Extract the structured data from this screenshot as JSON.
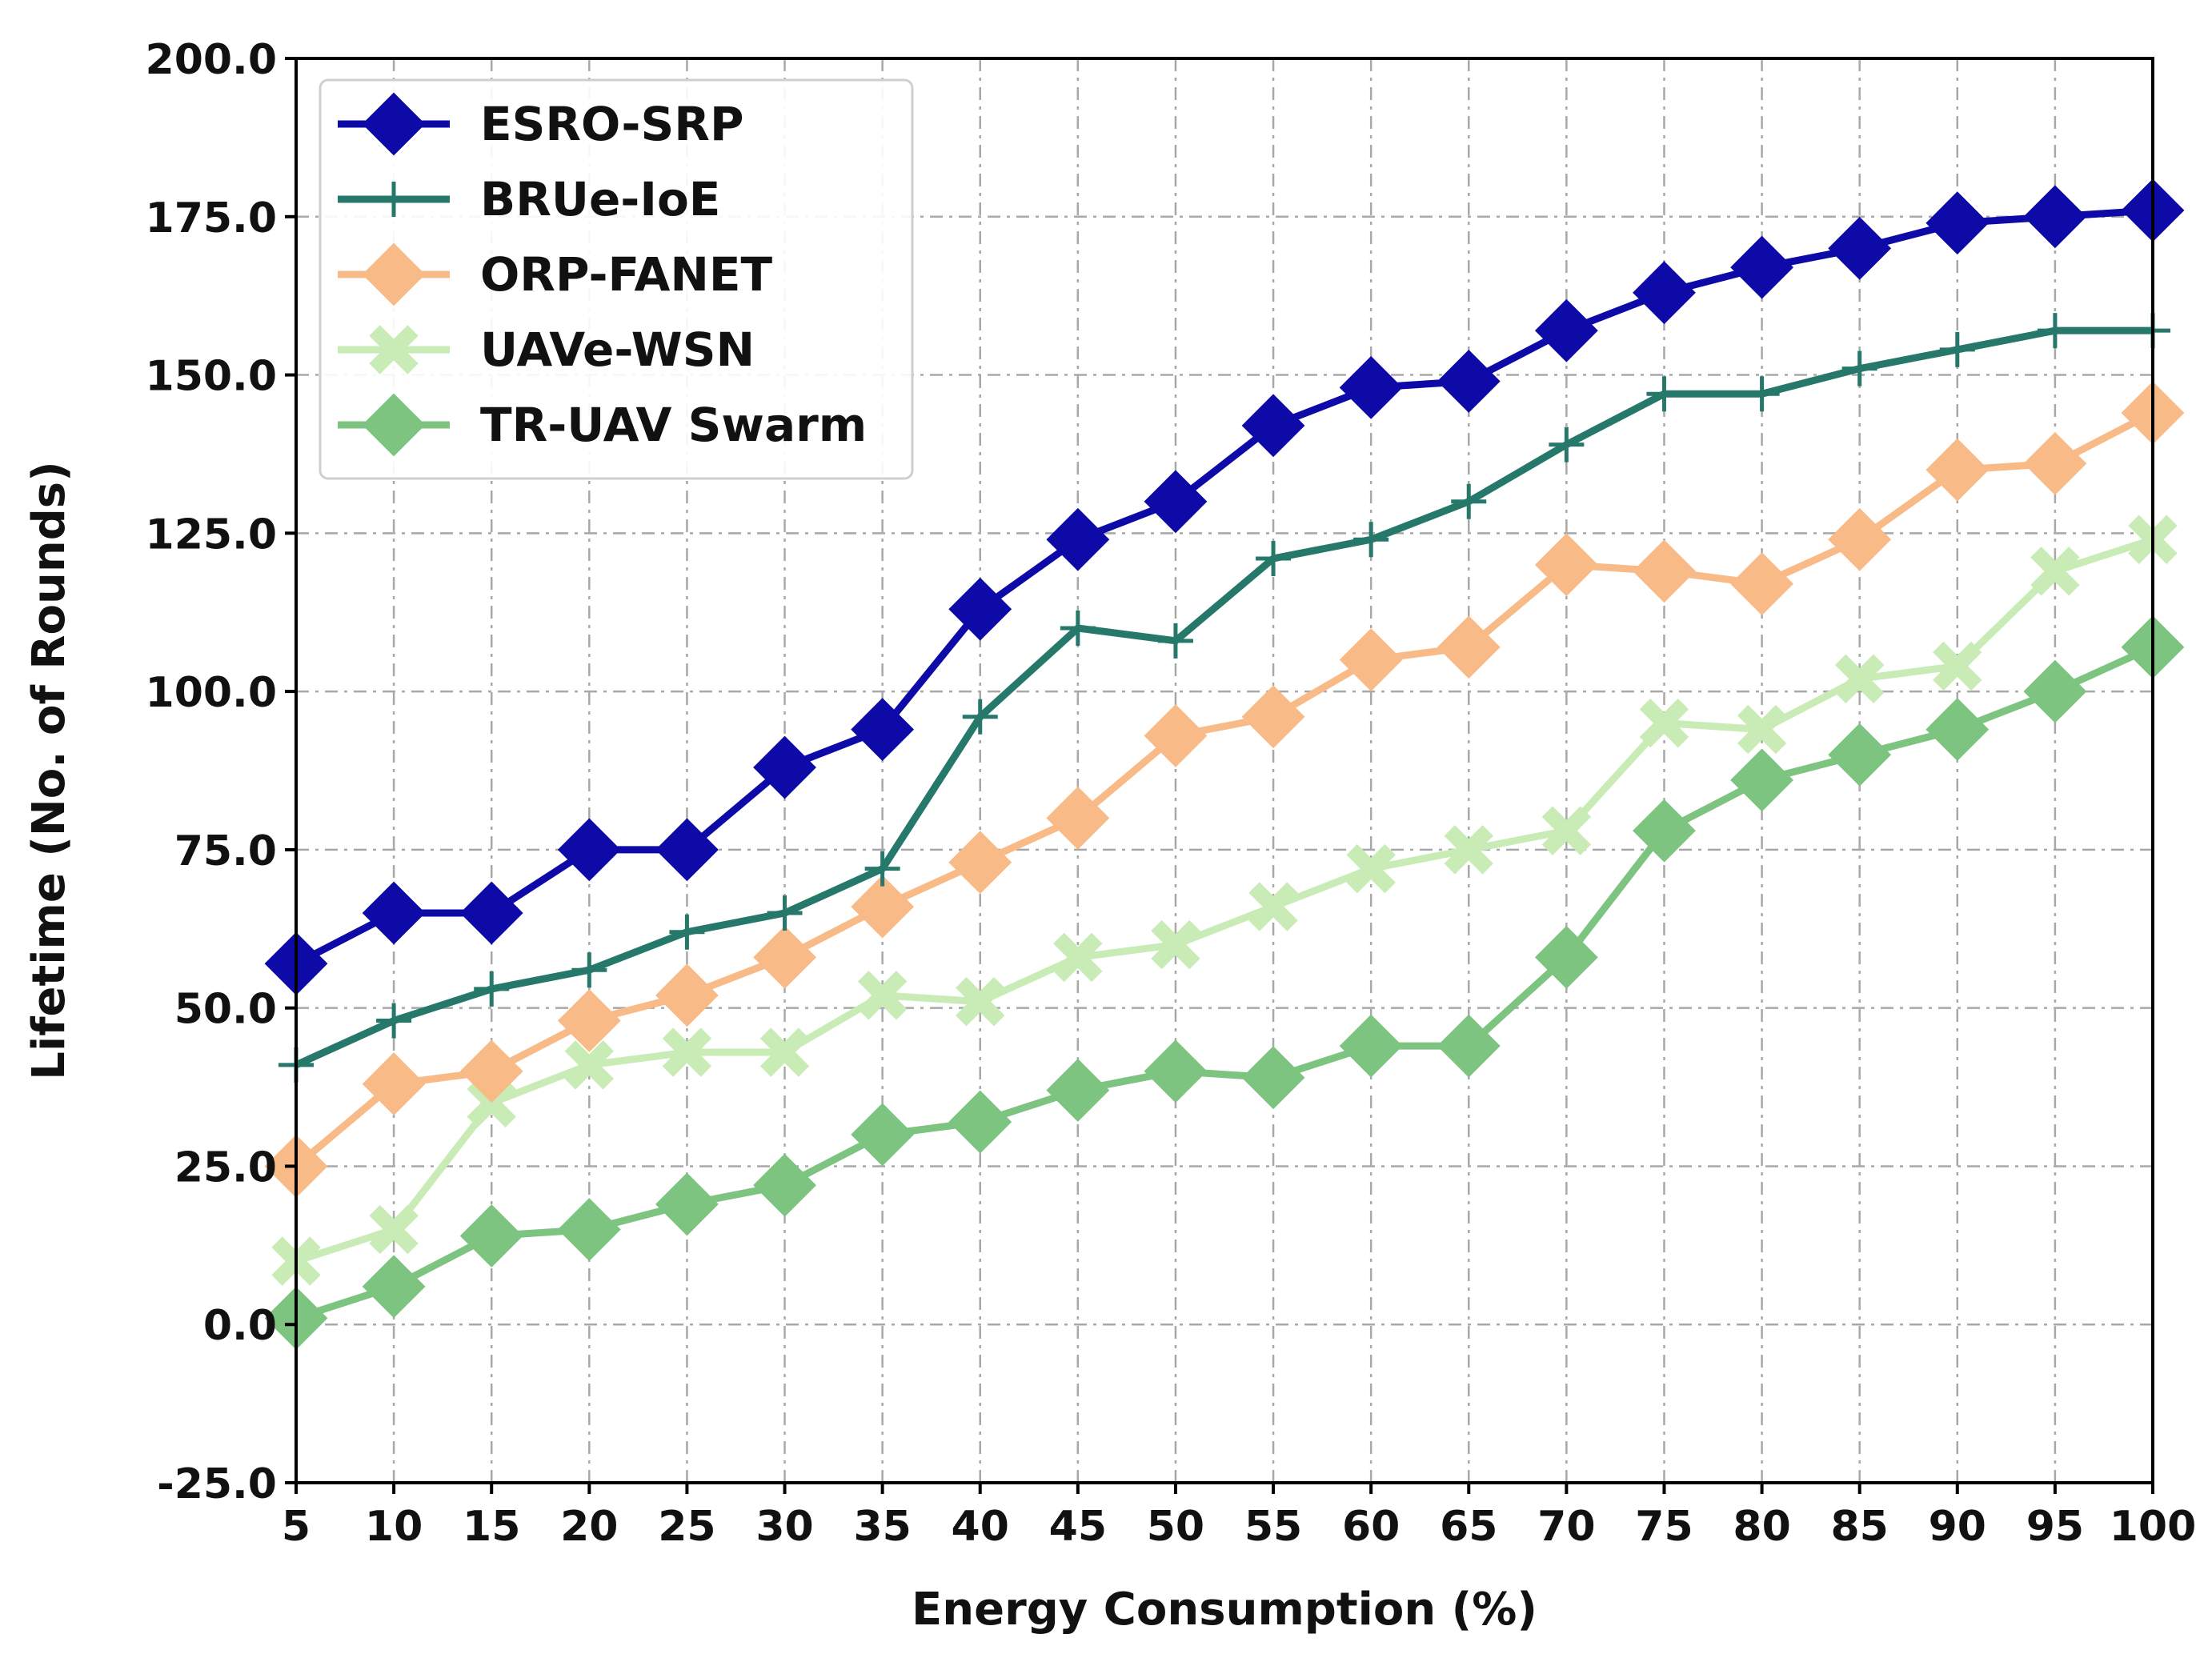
{
  "chart_data": {
    "type": "line",
    "title": "",
    "xlabel": "Energy Consumption (%)",
    "ylabel": "Lifetime (No. of Rounds)",
    "x": [
      5,
      10,
      15,
      20,
      25,
      30,
      35,
      40,
      45,
      50,
      55,
      60,
      65,
      70,
      75,
      80,
      85,
      90,
      95,
      100
    ],
    "x_ticks": [
      "5",
      "10",
      "15",
      "20",
      "25",
      "30",
      "35",
      "40",
      "45",
      "50",
      "55",
      "60",
      "65",
      "70",
      "75",
      "80",
      "85",
      "90",
      "95",
      "100"
    ],
    "y_ticks": [
      "-25.0",
      "0.0",
      "25.0",
      "50.0",
      "75.0",
      "100.0",
      "125.0",
      "150.0",
      "175.0",
      "200.0"
    ],
    "xlim": [
      5,
      100
    ],
    "ylim": [
      -25,
      200
    ],
    "grid": true,
    "legend_position": "top-left",
    "series": [
      {
        "name": "ESRO-SRP",
        "color": "#0d0aa8",
        "marker": "diamond",
        "values": [
          57,
          65,
          65,
          75,
          75,
          88,
          94,
          113,
          124,
          130,
          142,
          148,
          149,
          157,
          163,
          167,
          170,
          174,
          175,
          176
        ]
      },
      {
        "name": "BRUe-IoE",
        "color": "#26786a",
        "marker": "plus",
        "values": [
          41,
          48,
          53,
          56,
          62,
          65,
          72,
          96,
          110,
          108,
          121,
          124,
          130,
          139,
          147,
          147,
          151,
          154,
          157,
          157
        ]
      },
      {
        "name": "ORP-FANET",
        "color": "#f8bb88",
        "marker": "diamond",
        "values": [
          25,
          38,
          40,
          48,
          52,
          58,
          66,
          73,
          80,
          93,
          96,
          105,
          107,
          120,
          119,
          117,
          124,
          135,
          136,
          144
        ]
      },
      {
        "name": "UAVe-WSN",
        "color": "#c9ecb6",
        "marker": "x",
        "values": [
          10,
          15,
          35,
          41,
          43,
          43,
          52,
          51,
          58,
          60,
          66,
          72,
          75,
          78,
          95,
          94,
          102,
          104,
          119,
          124
        ]
      },
      {
        "name": "TR-UAV Swarm",
        "color": "#7cc47f",
        "marker": "diamond",
        "values": [
          1,
          6,
          14,
          15,
          19,
          22,
          30,
          32,
          37,
          40,
          39,
          44,
          44,
          58,
          78,
          86,
          90,
          94,
          100,
          107
        ]
      }
    ]
  }
}
